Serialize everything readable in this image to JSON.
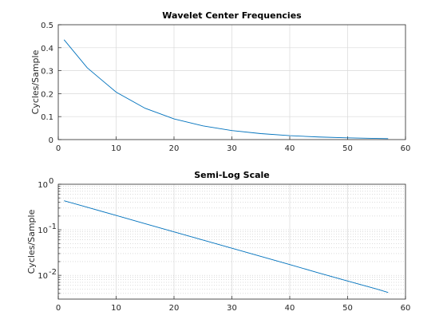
{
  "chart_data": [
    {
      "type": "line",
      "title": "Wavelet Center Frequencies",
      "xlabel": "",
      "ylabel": "Cycles/Sample",
      "xlim": [
        0,
        60
      ],
      "ylim": [
        0,
        0.5
      ],
      "yscale": "linear",
      "grid": true,
      "xticks": [
        "0",
        "10",
        "20",
        "30",
        "40",
        "50",
        "60"
      ],
      "yticks": [
        "0",
        "0.1",
        "0.2",
        "0.3",
        "0.4",
        "0.5"
      ],
      "series": [
        {
          "color": "#0072bd",
          "x": [
            1,
            5,
            10,
            15,
            20,
            25,
            30,
            35,
            40,
            45,
            50,
            55,
            57
          ],
          "y": [
            0.4346,
            0.3126,
            0.2065,
            0.1364,
            0.0901,
            0.0595,
            0.0393,
            0.026,
            0.0172,
            0.0113,
            0.0075,
            0.005,
            0.0042
          ]
        }
      ]
    },
    {
      "type": "line",
      "title": "Semi-Log Scale",
      "xlabel": "",
      "ylabel": "Cycles/Sample",
      "xlim": [
        0,
        60
      ],
      "ylim": [
        0.003,
        1
      ],
      "yscale": "log",
      "grid": true,
      "xticks": [
        "0",
        "10",
        "20",
        "30",
        "40",
        "50",
        "60"
      ],
      "yticks": [
        {
          "base": "10",
          "exp": "0",
          "value": 1
        },
        {
          "base": "10",
          "exp": "-1",
          "value": 0.1
        },
        {
          "base": "10",
          "exp": "-2",
          "value": 0.01
        }
      ],
      "series": [
        {
          "color": "#0072bd",
          "x": [
            1,
            5,
            10,
            15,
            20,
            25,
            30,
            35,
            40,
            45,
            50,
            55,
            57
          ],
          "y": [
            0.4346,
            0.3126,
            0.2065,
            0.1364,
            0.0901,
            0.0595,
            0.0393,
            0.026,
            0.0172,
            0.0113,
            0.0075,
            0.005,
            0.0042
          ]
        }
      ]
    }
  ]
}
